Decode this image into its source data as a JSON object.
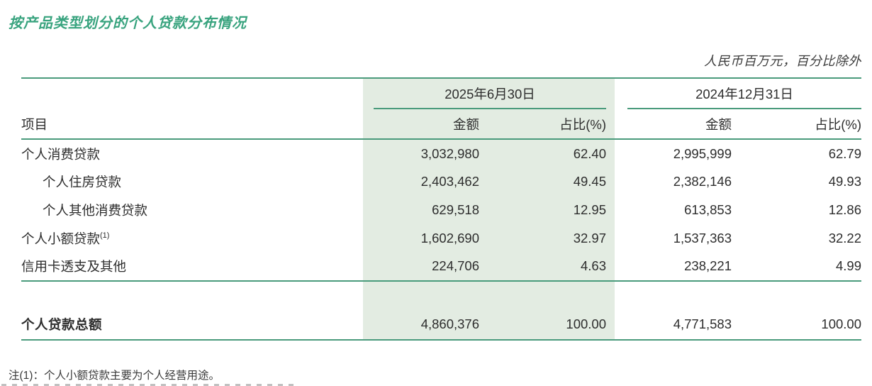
{
  "title": "按产品类型划分的个人贷款分布情况",
  "unit_note": "人民币百万元，百分比除外",
  "colors": {
    "accent_green": "#4a9b7c",
    "title_green": "#38a37e",
    "highlight_bg": "#e3ece2"
  },
  "table": {
    "item_header": "项目",
    "col_groups": [
      {
        "date": "2025年6月30日",
        "amount_label": "金额",
        "pct_label": "占比(%)"
      },
      {
        "date": "2024年12月31日",
        "amount_label": "金额",
        "pct_label": "占比(%)"
      }
    ],
    "rows": [
      {
        "label": "个人消费贷款",
        "sup": "",
        "indent": false,
        "values": [
          "3,032,980",
          "62.40",
          "2,995,999",
          "62.79"
        ]
      },
      {
        "label": "个人住房贷款",
        "sup": "",
        "indent": true,
        "values": [
          "2,403,462",
          "49.45",
          "2,382,146",
          "49.93"
        ]
      },
      {
        "label": "个人其他消费贷款",
        "sup": "",
        "indent": true,
        "values": [
          "629,518",
          "12.95",
          "613,853",
          "12.86"
        ]
      },
      {
        "label": "个人小额贷款",
        "sup": "(1)",
        "indent": false,
        "values": [
          "1,602,690",
          "32.97",
          "1,537,363",
          "32.22"
        ]
      },
      {
        "label": "信用卡透支及其他",
        "sup": "",
        "indent": false,
        "values": [
          "224,706",
          "4.63",
          "238,221",
          "4.99"
        ]
      }
    ],
    "total_row": {
      "label": "个人贷款总额",
      "values": [
        "4,860,376",
        "100.00",
        "4,771,583",
        "100.00"
      ]
    }
  },
  "footnote": "注(1)：个人小额贷款主要为个人经营用途。"
}
